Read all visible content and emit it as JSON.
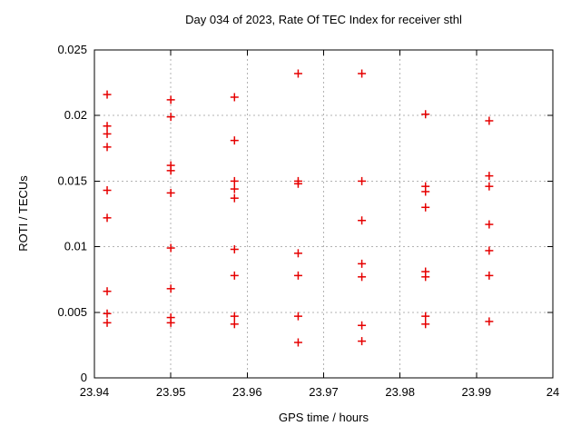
{
  "chart_data": {
    "type": "scatter",
    "title": "Day 034 of 2023, Rate Of TEC Index for receiver sthl",
    "xlabel": "GPS time / hours",
    "ylabel": "ROTI / TECUs",
    "xlim": [
      23.94,
      24
    ],
    "ylim": [
      0,
      0.025
    ],
    "grid": true,
    "legend": "none",
    "xticks": [
      {
        "value": 23.94,
        "label": "23.94"
      },
      {
        "value": 23.95,
        "label": "23.95"
      },
      {
        "value": 23.96,
        "label": "23.96"
      },
      {
        "value": 23.97,
        "label": "23.97"
      },
      {
        "value": 23.98,
        "label": "23.98"
      },
      {
        "value": 23.99,
        "label": "23.99"
      },
      {
        "value": 24,
        "label": "24"
      }
    ],
    "yticks": [
      {
        "value": 0,
        "label": "0"
      },
      {
        "value": 0.005,
        "label": "0.005"
      },
      {
        "value": 0.01,
        "label": "0.01"
      },
      {
        "value": 0.015,
        "label": "0.015"
      },
      {
        "value": 0.02,
        "label": "0.02"
      },
      {
        "value": 0.025,
        "label": "0.025"
      }
    ],
    "style": {
      "marker_shape": "plus",
      "marker_color": "#e60000",
      "marker_size": 9,
      "grid_color": "#b3b3b3",
      "axis_color": "#000000",
      "background": "#ffffff"
    },
    "series": [
      {
        "name": "ROTI",
        "points": [
          [
            23.941667,
            0.0216
          ],
          [
            23.941667,
            0.0192
          ],
          [
            23.941667,
            0.0186
          ],
          [
            23.941667,
            0.0176
          ],
          [
            23.941667,
            0.0143
          ],
          [
            23.941667,
            0.0122
          ],
          [
            23.941667,
            0.0066
          ],
          [
            23.941667,
            0.0049
          ],
          [
            23.941667,
            0.0042
          ],
          [
            23.95,
            0.0212
          ],
          [
            23.95,
            0.0199
          ],
          [
            23.95,
            0.0162
          ],
          [
            23.95,
            0.0158
          ],
          [
            23.95,
            0.0141
          ],
          [
            23.95,
            0.0099
          ],
          [
            23.95,
            0.0068
          ],
          [
            23.95,
            0.0046
          ],
          [
            23.95,
            0.0042
          ],
          [
            23.958333,
            0.0214
          ],
          [
            23.958333,
            0.0181
          ],
          [
            23.958333,
            0.015
          ],
          [
            23.958333,
            0.0144
          ],
          [
            23.958333,
            0.0137
          ],
          [
            23.958333,
            0.0098
          ],
          [
            23.958333,
            0.0078
          ],
          [
            23.958333,
            0.0047
          ],
          [
            23.958333,
            0.0041
          ],
          [
            23.966667,
            0.0232
          ],
          [
            23.966667,
            0.015
          ],
          [
            23.966667,
            0.0148
          ],
          [
            23.966667,
            0.0095
          ],
          [
            23.966667,
            0.0078
          ],
          [
            23.966667,
            0.0047
          ],
          [
            23.966667,
            0.0027
          ],
          [
            23.975,
            0.0232
          ],
          [
            23.975,
            0.015
          ],
          [
            23.975,
            0.012
          ],
          [
            23.975,
            0.0087
          ],
          [
            23.975,
            0.0077
          ],
          [
            23.975,
            0.004
          ],
          [
            23.975,
            0.0028
          ],
          [
            23.983333,
            0.0201
          ],
          [
            23.983333,
            0.0146
          ],
          [
            23.983333,
            0.0142
          ],
          [
            23.983333,
            0.013
          ],
          [
            23.983333,
            0.0081
          ],
          [
            23.983333,
            0.0077
          ],
          [
            23.983333,
            0.0047
          ],
          [
            23.983333,
            0.0041
          ],
          [
            23.991667,
            0.0196
          ],
          [
            23.991667,
            0.0154
          ],
          [
            23.991667,
            0.0146
          ],
          [
            23.991667,
            0.0117
          ],
          [
            23.991667,
            0.0097
          ],
          [
            23.991667,
            0.0078
          ],
          [
            23.991667,
            0.0043
          ]
        ]
      }
    ]
  }
}
